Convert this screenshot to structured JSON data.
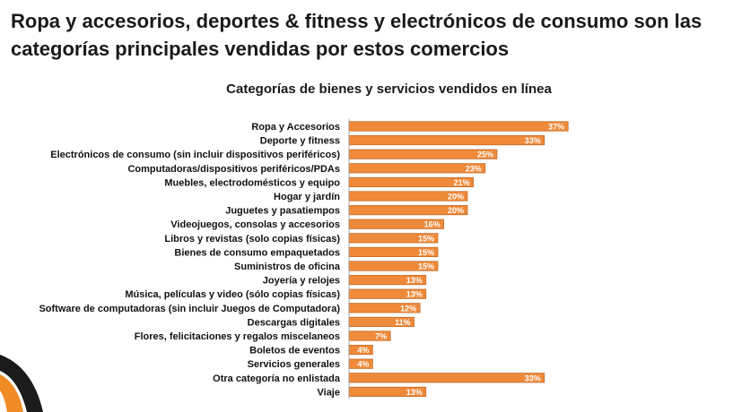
{
  "slide": {
    "headline": "Ropa y accesorios, deportes & fitness  y electrónicos de consumo son las categorías principales vendidas por estos comercios"
  },
  "colors": {
    "bar": "#ee8a3a",
    "bar_outline": "#b65a16",
    "value_label_inside": "#ffffff",
    "value_label_outside": "#111111",
    "decoration_dark": "#1b1b1b",
    "decoration_accent": "#f08a24"
  },
  "chart_data": {
    "type": "bar",
    "orientation": "horizontal",
    "title": "Categorías de bienes y servicios vendidos en línea",
    "xlabel": "",
    "ylabel": "",
    "xlim": [
      0,
      100
    ],
    "grid": false,
    "legend": "none",
    "categories": [
      "Ropa y Accesorios",
      "Deporte y fitness",
      "Electrónicos de consumo (sin incluir dispositivos periféricos)",
      "Computadoras/dispositivos periféricos/PDAs",
      "Muebles, electrodomésticos y equipo",
      "Hogar y jardín",
      "Juguetes y pasatiempos",
      "Videojuegos, consolas y accesorios",
      "Libros y revistas  (solo copias físicas)",
      "Bienes de consumo empaquetados",
      "Suministros de oficina",
      "Joyería y relojes",
      "Música, películas y video (sólo copias físicas)",
      "Software de computadoras (sin incluir Juegos de Computadora)",
      "Descargas digitales",
      "Flores, felicitaciones y regalos miscelaneos",
      "Boletos de eventos",
      "Servicios generales",
      "Otra categoría no enlistada",
      "Viaje"
    ],
    "values": [
      37,
      33,
      25,
      23,
      21,
      20,
      20,
      16,
      15,
      15,
      15,
      13,
      13,
      12,
      11,
      7,
      4,
      4,
      33,
      13
    ],
    "value_labels": [
      "37%",
      "33%",
      "25%",
      "23%",
      "21%",
      "20%",
      "20%",
      "16%",
      "15%",
      "15%",
      "15%",
      "13%",
      "13%",
      "12%",
      "11%",
      "7%",
      "4%",
      "4%",
      "33%",
      "13%"
    ]
  }
}
